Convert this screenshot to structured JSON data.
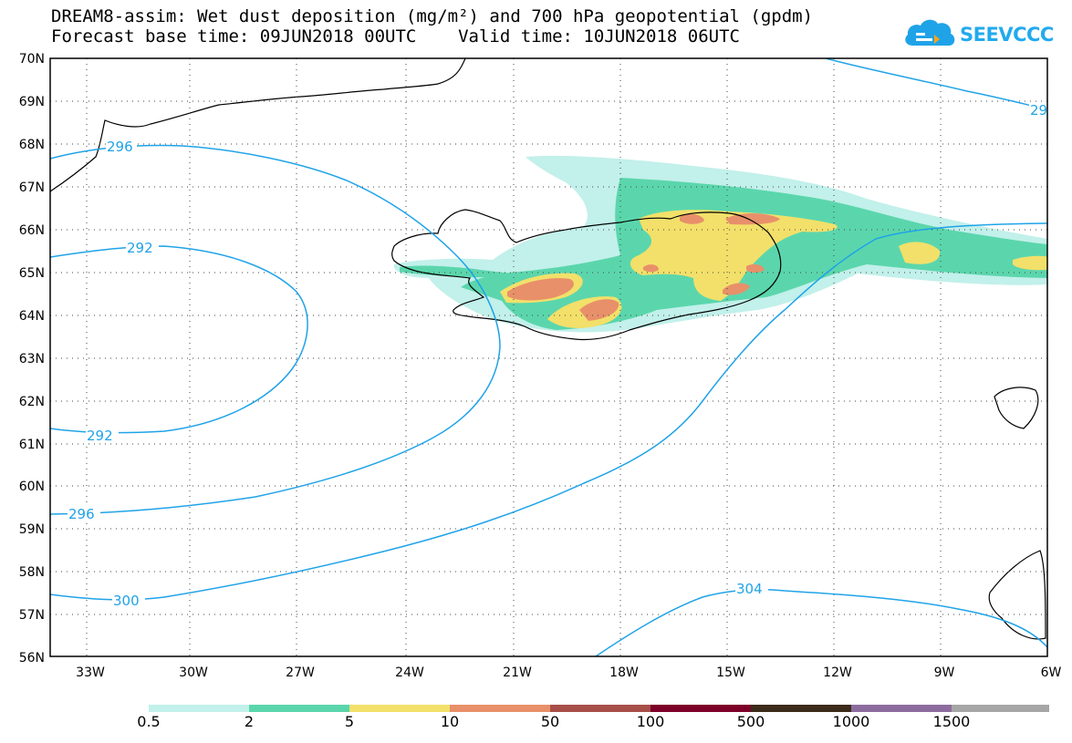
{
  "title": {
    "line1": "DREAM8-assim: Wet dust deposition (mg/m²) and 700 hPa geopotential (gpdm)",
    "line2": "Forecast base time: 09JUN2018 00UTC    Valid time: 10JUN2018 06UTC"
  },
  "logo": {
    "text": "SEEVCCC",
    "icon": "cloud-icon",
    "color": "#1fa3e8"
  },
  "axes": {
    "lat_labels": [
      "70N",
      "69N",
      "68N",
      "67N",
      "66N",
      "65N",
      "64N",
      "63N",
      "62N",
      "61N",
      "60N",
      "59N",
      "58N",
      "57N",
      "56N"
    ],
    "lon_labels": [
      "33W",
      "30W",
      "27W",
      "24W",
      "21W",
      "18W",
      "15W",
      "12W",
      "9W",
      "6W"
    ]
  },
  "contours": {
    "color": "#1fa3e8",
    "labels": [
      "296",
      "292",
      "292",
      "296",
      "300",
      "304",
      "29"
    ]
  },
  "colorbar": {
    "colors": [
      "#c2f0ea",
      "#5bd6ac",
      "#f2e06a",
      "#e8906a",
      "#a84e48",
      "#7d0028",
      "#3c2a1a",
      "#8c6c9e",
      "#a6a6a6"
    ],
    "labels": [
      "0.5",
      "2",
      "5",
      "10",
      "50",
      "100",
      "500",
      "1000",
      "1500"
    ]
  }
}
